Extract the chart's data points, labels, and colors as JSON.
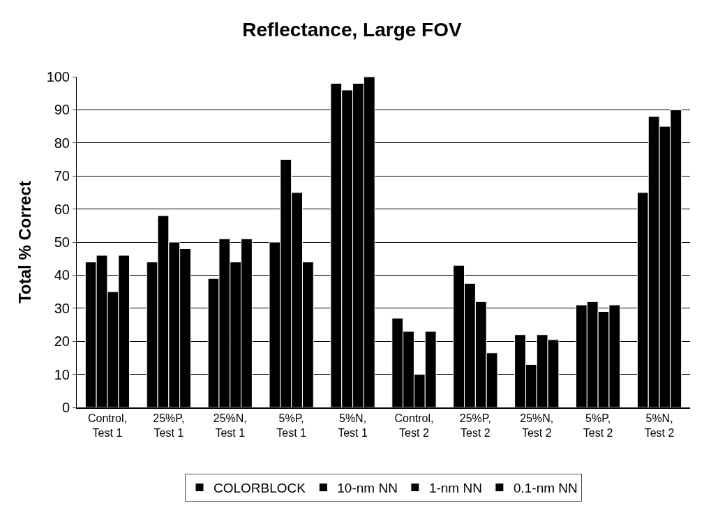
{
  "chart_data": {
    "type": "bar",
    "title": "Reflectance, Large FOV",
    "ylabel": "Total % Correct",
    "categories": [
      "Control,\nTest 1",
      "25%P,\nTest 1",
      "25%N,\nTest 1",
      "5%P,\nTest 1",
      "5%N,\nTest 1",
      "Control,\nTest 2",
      "25%P,\nTest 2",
      "25%N,\nTest 2",
      "5%P,\nTest 2",
      "5%N,\nTest 2"
    ],
    "series": [
      {
        "name": "COLORBLOCK",
        "color": "#000000",
        "values": [
          44,
          44,
          39,
          50,
          98,
          27,
          43,
          22,
          31,
          65
        ]
      },
      {
        "name": "10-nm NN",
        "color": "#000000",
        "values": [
          46,
          58,
          51,
          75,
          96,
          23,
          37.5,
          13,
          32,
          88
        ]
      },
      {
        "name": "1-nm NN",
        "color": "#000000",
        "values": [
          35,
          50,
          44,
          65,
          98,
          10,
          32,
          22,
          29,
          85
        ]
      },
      {
        "name": "0.1-nm NN",
        "color": "#000000",
        "values": [
          46,
          48,
          51,
          44,
          100,
          23,
          16.5,
          20.5,
          31,
          90
        ]
      }
    ],
    "ylim": [
      0,
      100
    ],
    "yticks": [
      0,
      10,
      20,
      30,
      40,
      50,
      60,
      70,
      80,
      90,
      100
    ],
    "grid": "y",
    "legend": "bottom"
  }
}
